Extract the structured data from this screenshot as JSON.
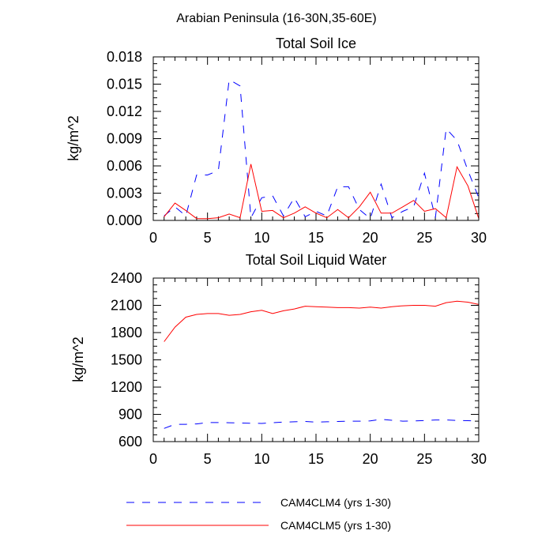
{
  "figure_title": "Arabian Peninsula (16-30N,35-60E)",
  "legend": {
    "entries": [
      {
        "label": "CAM4CLM4 (yrs 1-30)",
        "color": "#0000ff",
        "style": "dashed"
      },
      {
        "label": "CAM4CLM5 (yrs 1-30)",
        "color": "#ff0000",
        "style": "solid"
      }
    ]
  },
  "chart_data": [
    {
      "type": "line",
      "title": "Total Soil Ice",
      "xlabel": "",
      "ylabel": "kg/m^2",
      "xlim": [
        0,
        30
      ],
      "ylim": [
        0,
        0.018
      ],
      "xticks": [
        "0",
        "5",
        "10",
        "15",
        "20",
        "25",
        "30"
      ],
      "yticks": [
        "0.000",
        "0.003",
        "0.006",
        "0.009",
        "0.012",
        "0.015",
        "0.018"
      ],
      "grid": false,
      "x": [
        1,
        2,
        3,
        4,
        5,
        6,
        7,
        8,
        9,
        10,
        11,
        12,
        13,
        14,
        15,
        16,
        17,
        18,
        19,
        20,
        21,
        22,
        23,
        24,
        25,
        26,
        27,
        28,
        29,
        30
      ],
      "series": [
        {
          "name": "CAM4CLM4 (yrs 1-30)",
          "color": "#0000ff",
          "style": "dashed",
          "values": [
            0.0005,
            0.0015,
            0.0005,
            0.005,
            0.005,
            0.0055,
            0.0155,
            0.0148,
            0.0003,
            0.0025,
            0.0027,
            0.0005,
            0.0025,
            0.0004,
            0.001,
            0.0005,
            0.0037,
            0.0037,
            0.0012,
            0.0002,
            0.004,
            0.0003,
            0.001,
            0.0015,
            0.0052,
            0.0003,
            0.0101,
            0.0088,
            0.0055,
            0.0025
          ]
        },
        {
          "name": "CAM4CLM5 (yrs 1-30)",
          "color": "#ff0000",
          "style": "solid",
          "values": [
            0.0004,
            0.0019,
            0.0011,
            0.0002,
            0.0002,
            0.0003,
            0.0007,
            0.0003,
            0.0062,
            0.001,
            0.0011,
            0.0003,
            0.0008,
            0.0015,
            0.0008,
            0.0003,
            0.0012,
            0.0003,
            0.0015,
            0.0031,
            0.0008,
            0.0008,
            0.0015,
            0.0022,
            0.001,
            0.0013,
            0.0003,
            0.0059,
            0.0038,
            0.0002
          ]
        }
      ]
    },
    {
      "type": "line",
      "title": "Total Soil Liquid Water",
      "xlabel": "",
      "ylabel": "kg/m^2",
      "xlim": [
        0,
        30
      ],
      "ylim": [
        600,
        2400
      ],
      "xticks": [
        "0",
        "5",
        "10",
        "15",
        "20",
        "25",
        "30"
      ],
      "yticks": [
        "600",
        "900",
        "1200",
        "1500",
        "1800",
        "2100",
        "2400"
      ],
      "grid": false,
      "x": [
        1,
        2,
        3,
        4,
        5,
        6,
        7,
        8,
        9,
        10,
        11,
        12,
        13,
        14,
        15,
        16,
        17,
        18,
        19,
        20,
        21,
        22,
        23,
        24,
        25,
        26,
        27,
        28,
        29,
        30
      ],
      "series": [
        {
          "name": "CAM4CLM4 (yrs 1-30)",
          "color": "#0000ff",
          "style": "dashed",
          "values": [
            745,
            790,
            790,
            795,
            810,
            810,
            808,
            805,
            802,
            800,
            808,
            815,
            818,
            822,
            815,
            818,
            822,
            825,
            825,
            828,
            845,
            835,
            825,
            828,
            832,
            838,
            838,
            832,
            830,
            828
          ]
        },
        {
          "name": "CAM4CLM5 (yrs 1-30)",
          "color": "#ff0000",
          "style": "solid",
          "values": [
            1700,
            1860,
            1970,
            2000,
            2010,
            2010,
            1990,
            2000,
            2030,
            2045,
            2010,
            2040,
            2060,
            2090,
            2085,
            2080,
            2075,
            2075,
            2070,
            2080,
            2070,
            2085,
            2095,
            2100,
            2100,
            2090,
            2130,
            2145,
            2135,
            2110
          ]
        }
      ]
    }
  ]
}
